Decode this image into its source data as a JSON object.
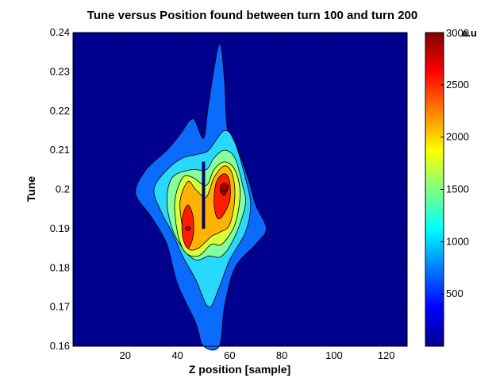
{
  "chart_data": {
    "type": "contour",
    "title": "Tune versus Position found between turn 100 and turn 200",
    "xlabel": "Z position [sample]",
    "ylabel": "Tune",
    "xlim": [
      0,
      128
    ],
    "ylim": [
      0.16,
      0.24
    ],
    "xticks": [
      "20",
      "40",
      "60",
      "80",
      "100",
      "120"
    ],
    "xtick_values": [
      20,
      40,
      60,
      80,
      100,
      120
    ],
    "yticks": [
      "0.16",
      "0.17",
      "0.18",
      "0.19",
      "0.2",
      "0.21",
      "0.22",
      "0.23",
      "0.24"
    ],
    "ytick_values": [
      0.16,
      0.17,
      0.18,
      0.19,
      0.2,
      0.21,
      0.22,
      0.23,
      0.24
    ],
    "colorbar": {
      "label": "a.u",
      "range": [
        0,
        3000
      ],
      "ticks": [
        "500",
        "1000",
        "1500",
        "2000",
        "2500",
        "3000"
      ],
      "tick_values": [
        500,
        1000,
        1500,
        2000,
        2500,
        3000
      ],
      "colormap": "jet"
    },
    "peaks": [
      {
        "x": 44,
        "y": 0.19,
        "value": 2900
      },
      {
        "x": 58,
        "y": 0.2005,
        "value": 3000
      }
    ],
    "levels": [
      {
        "level": 400,
        "color": "#0b6bfe"
      },
      {
        "level": 850,
        "color": "#29d9fb"
      },
      {
        "level": 1300,
        "color": "#86ffa0"
      },
      {
        "level": 1750,
        "color": "#d9ff3a"
      },
      {
        "level": 2200,
        "color": "#ffb300"
      },
      {
        "level": 2650,
        "color": "#ff1d00"
      },
      {
        "level": 2900,
        "color": "#a10000"
      }
    ],
    "background_color": "#00008f",
    "grid": false
  }
}
